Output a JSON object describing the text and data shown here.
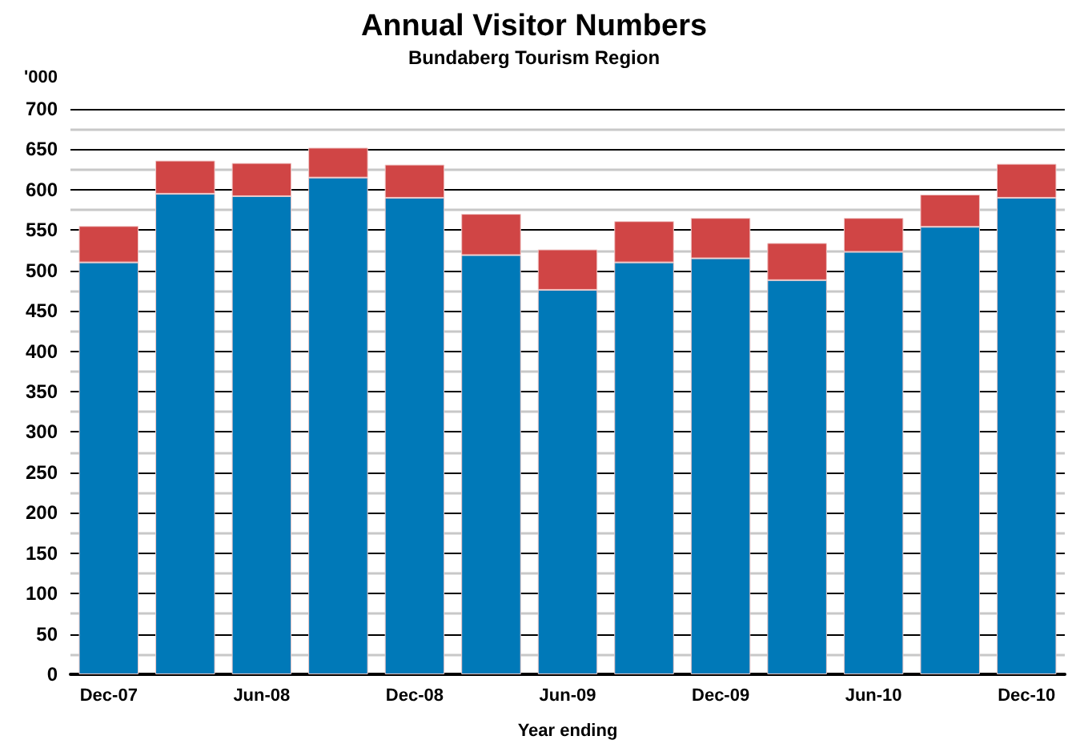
{
  "chart_data": {
    "type": "bar",
    "title": "Annual Visitor Numbers",
    "subtitle": "Bundaberg Tourism Region",
    "xlabel": "Year ending",
    "ylabel": "'000",
    "categories": [
      "Dec-07",
      null,
      "Jun-08",
      null,
      "Dec-08",
      null,
      "Jun-09",
      null,
      "Dec-09",
      null,
      "Jun-10",
      null,
      "Dec-10"
    ],
    "series": [
      {
        "color": "#0079b8",
        "values": [
          510,
          595,
          592,
          615,
          590,
          519,
          476,
          510,
          515,
          488,
          523,
          554,
          590
        ]
      },
      {
        "color": "#d04545",
        "values": [
          45,
          41,
          41,
          37,
          41,
          51,
          50,
          51,
          50,
          46,
          42,
          40,
          42
        ]
      }
    ],
    "stacked": true,
    "ylim": [
      0,
      700
    ],
    "yticks": [
      0,
      50,
      100,
      150,
      200,
      250,
      300,
      350,
      400,
      450,
      500,
      550,
      600,
      650,
      700
    ],
    "grid": "y"
  }
}
